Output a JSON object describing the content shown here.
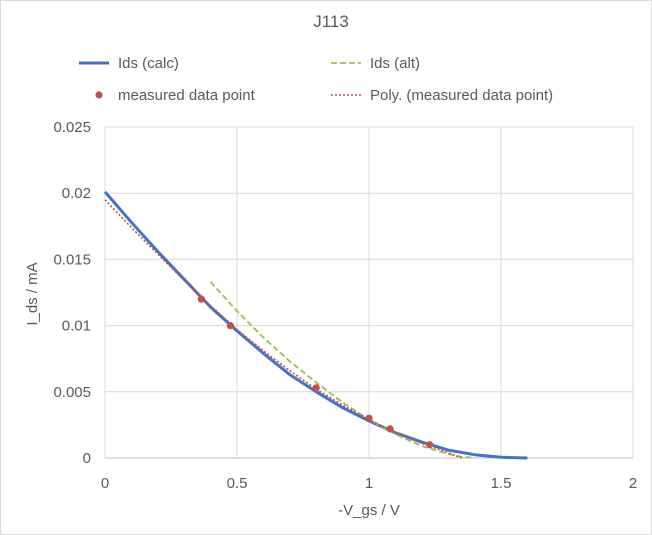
{
  "chart_data": {
    "type": "scatter",
    "title": "J113",
    "xlabel": "-V_gs / V",
    "ylabel": "I_ds / mA",
    "xlim": [
      0,
      2
    ],
    "ylim": [
      0,
      0.025
    ],
    "x_ticks": [
      "0",
      "0.5",
      "1",
      "1.5",
      "2"
    ],
    "y_ticks": [
      "0",
      "0.005",
      "0.01",
      "0.015",
      "0.02",
      "0.025"
    ],
    "grid": true,
    "legend_position": "top",
    "series": [
      {
        "name": "Ids (calc)",
        "kind": "line",
        "color": "#4472c4",
        "style": "solid",
        "x": [
          0.0,
          0.1,
          0.2,
          0.3,
          0.4,
          0.5,
          0.6,
          0.7,
          0.8,
          0.9,
          1.0,
          1.1,
          1.2,
          1.3,
          1.4,
          1.5,
          1.6
        ],
        "y": [
          0.0201,
          0.0178,
          0.0156,
          0.0135,
          0.0114,
          0.0096,
          0.0079,
          0.0063,
          0.005,
          0.0038,
          0.0028,
          0.0019,
          0.0012,
          0.0006,
          0.00025,
          5e-05,
          0.0
        ]
      },
      {
        "name": "Ids (alt)",
        "kind": "line",
        "color": "#9bbb59",
        "style": "dashed",
        "x": [
          0.4,
          0.5,
          0.6,
          0.7,
          0.8,
          0.9,
          1.0,
          1.1,
          1.2,
          1.3,
          1.35,
          1.4
        ],
        "y": [
          0.0133,
          0.0111,
          0.0091,
          0.0073,
          0.0057,
          0.0042,
          0.0029,
          0.0018,
          0.0009,
          0.0003,
          0.0001,
          0.0
        ]
      },
      {
        "name": "measured data point",
        "kind": "marker",
        "color": "#c0504d",
        "x": [
          0.365,
          0.475,
          0.8,
          1.0,
          1.08,
          1.23
        ],
        "y": [
          0.012,
          0.01,
          0.0053,
          0.003,
          0.0022,
          0.001
        ]
      },
      {
        "name": "Poly. (measured data point)",
        "kind": "line",
        "color": "#c0504d",
        "style": "dotted",
        "x": [
          0.0,
          0.1,
          0.2,
          0.3,
          0.4,
          0.5,
          0.6,
          0.7,
          0.8,
          0.9,
          1.0,
          1.1,
          1.2,
          1.3,
          1.35
        ],
        "y": [
          0.0195,
          0.0174,
          0.0154,
          0.0134,
          0.0115,
          0.0097,
          0.0081,
          0.0066,
          0.0052,
          0.004,
          0.0029,
          0.0019,
          0.0011,
          0.0004,
          0.0
        ]
      }
    ]
  }
}
